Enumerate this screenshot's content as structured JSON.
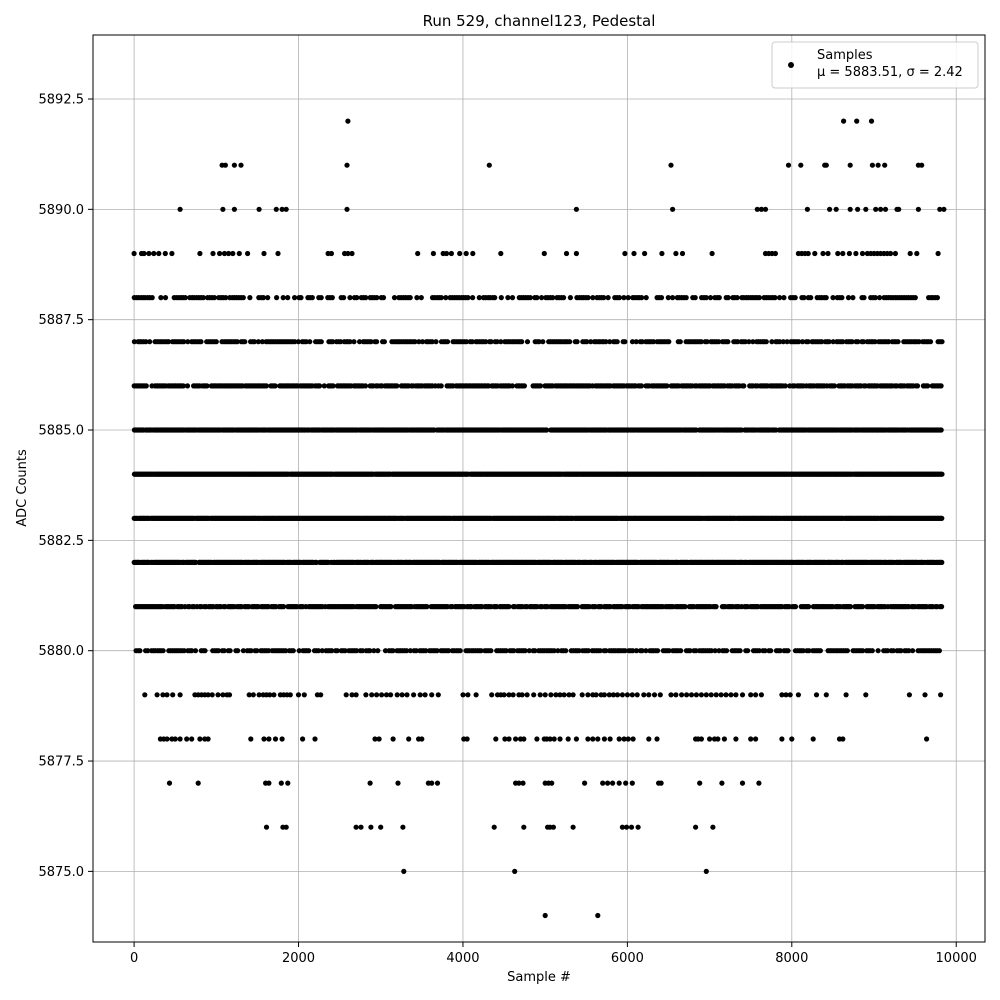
{
  "chart_data": {
    "type": "scatter",
    "title": "Run 529, channel123, Pedestal",
    "xlabel": "Sample #",
    "ylabel": "ADC Counts",
    "xlim": [
      -500,
      10350
    ],
    "ylim": [
      5873.4,
      5893.95
    ],
    "xticks": [
      "0",
      "2000",
      "4000",
      "6000",
      "8000",
      "10000"
    ],
    "yticks": [
      "5875.0",
      "5877.5",
      "5880.0",
      "5882.5",
      "5885.0",
      "5887.5",
      "5890.0",
      "5892.5"
    ],
    "grid": true,
    "legend": {
      "position": "top-right",
      "entries": [
        "Samples",
        "μ = 5883.51, σ = 2.42"
      ]
    },
    "marker_color": "#000000",
    "series": [
      {
        "name": "Samples",
        "n_samples": 9830,
        "mean": 5883.51,
        "std": 2.42,
        "levels": [
          {
            "y": 5874,
            "x": [
              5000,
              5640
            ]
          },
          {
            "y": 5875,
            "x": [
              3280,
              4630,
              6960
            ]
          },
          {
            "y": 5876,
            "x": [
              1610,
              1810,
              1850,
              2700,
              2760,
              2880,
              3000,
              3270,
              4380,
              4740,
              5030,
              5060,
              5100,
              5340,
              5940,
              5990,
              6050,
              6130,
              6830,
              7040
            ]
          },
          {
            "y": 5877,
            "x": [
              430,
              780,
              1600,
              1640,
              1790,
              1870,
              2870,
              3210,
              3580,
              3620,
              3690,
              4640,
              4680,
              4730,
              5000,
              5040,
              5080,
              5480,
              5700,
              5760,
              5820,
              5900,
              5980,
              6060,
              6380,
              6410,
              6880,
              7150,
              7400,
              7600
            ]
          },
          {
            "y": 5878,
            "x": [
              320,
              360,
              400,
              460,
              500,
              560,
              640,
              700,
              800,
              860,
              900,
              1420,
              1580,
              1640,
              1720,
              1800,
              2050,
              2200,
              2930,
              2980,
              3150,
              3340,
              3460,
              3500,
              4010,
              4050,
              4400,
              4510,
              4560,
              4640,
              4700,
              4740,
              4900,
              4990,
              5020,
              5060,
              5110,
              5180,
              5280,
              5380,
              5520,
              5580,
              5640,
              5720,
              5790,
              5900,
              5960,
              6010,
              6070,
              6260,
              6360,
              6830,
              6860,
              6900,
              7000,
              7060,
              7100,
              7180,
              7320,
              7500,
              7560,
              7880,
              8000,
              8260,
              8580,
              8620,
              9640
            ]
          },
          {
            "y": 5879,
            "x": [
              130,
              280,
              350,
              400,
              470,
              560,
              740,
              780,
              820,
              860,
              900,
              950,
              1020,
              1080,
              1130,
              1160,
              1400,
              1450,
              1520,
              1570,
              1610,
              1650,
              1700,
              1780,
              1820,
              1860,
              1900,
              2000,
              2070,
              2230,
              2270,
              2580,
              2650,
              2700,
              2820,
              2890,
              2950,
              3010,
              3070,
              3120,
              3200,
              3260,
              3320,
              3400,
              3480,
              3540,
              3620,
              3700,
              4000,
              4060,
              4160,
              4350,
              4420,
              4460,
              4500,
              4560,
              4610,
              4680,
              4720,
              4780,
              4860,
              4940,
              5000,
              5070,
              5130,
              5180,
              5230,
              5290,
              5340,
              5450,
              5520,
              5580,
              5620,
              5680,
              5720,
              5780,
              5830,
              5880,
              5940,
              6000,
              6060,
              6120,
              6200,
              6260,
              6330,
              6400,
              6530,
              6590,
              6660,
              6720,
              6780,
              6840,
              6900,
              6960,
              7020,
              7080,
              7140,
              7200,
              7260,
              7320,
              7400,
              7500,
              7560,
              7630,
              7880,
              7930,
              7980,
              8080,
              8300,
              8420,
              8660,
              8900,
              9430,
              9620,
              9810
            ]
          }
        ],
        "dense_levels": [
          5880,
          5881,
          5882,
          5883,
          5884,
          5885,
          5886,
          5887,
          5888
        ],
        "dense_x_range": [
          0,
          9830
        ],
        "sparse_levels": [
          {
            "y": 5889,
            "x": [
              0,
              90,
              120,
              180,
              240,
              300,
              380,
              460,
              800,
              960,
              1040,
              1100,
              1150,
              1200,
              1280,
              1380,
              1580,
              1750,
              2360,
              2400,
              2560,
              2600,
              2650,
              3450,
              3640,
              3760,
              3800,
              3860,
              3960,
              4040,
              4120,
              4460,
              4990,
              5260,
              5380,
              5970,
              6080,
              6210,
              6420,
              6590,
              6670,
              7030,
              7680,
              7720,
              7760,
              7800,
              8080,
              8120,
              8160,
              8200,
              8280,
              8380,
              8440,
              8560,
              8620,
              8700,
              8780,
              8860,
              8920,
              8960,
              9000,
              9040,
              9080,
              9120,
              9160,
              9200,
              9260,
              9440,
              9520,
              9780
            ]
          },
          {
            "y": 5890,
            "x": [
              560,
              1080,
              1220,
              1520,
              1730,
              1800,
              1850,
              2590,
              5380,
              6550,
              7580,
              7630,
              7680,
              8190,
              8460,
              8540,
              8710,
              8800,
              8900,
              9020,
              9080,
              9140,
              9280,
              9300,
              9540,
              9800,
              9850
            ]
          },
          {
            "y": 5891,
            "x": [
              1070,
              1110,
              1220,
              1300,
              2590,
              4320,
              6530,
              7960,
              8110,
              8400,
              8420,
              8710,
              8980,
              9050,
              9130,
              9540,
              9580
            ]
          },
          {
            "y": 5892,
            "x": [
              2600,
              8630,
              8790,
              8970
            ]
          }
        ]
      }
    ]
  }
}
